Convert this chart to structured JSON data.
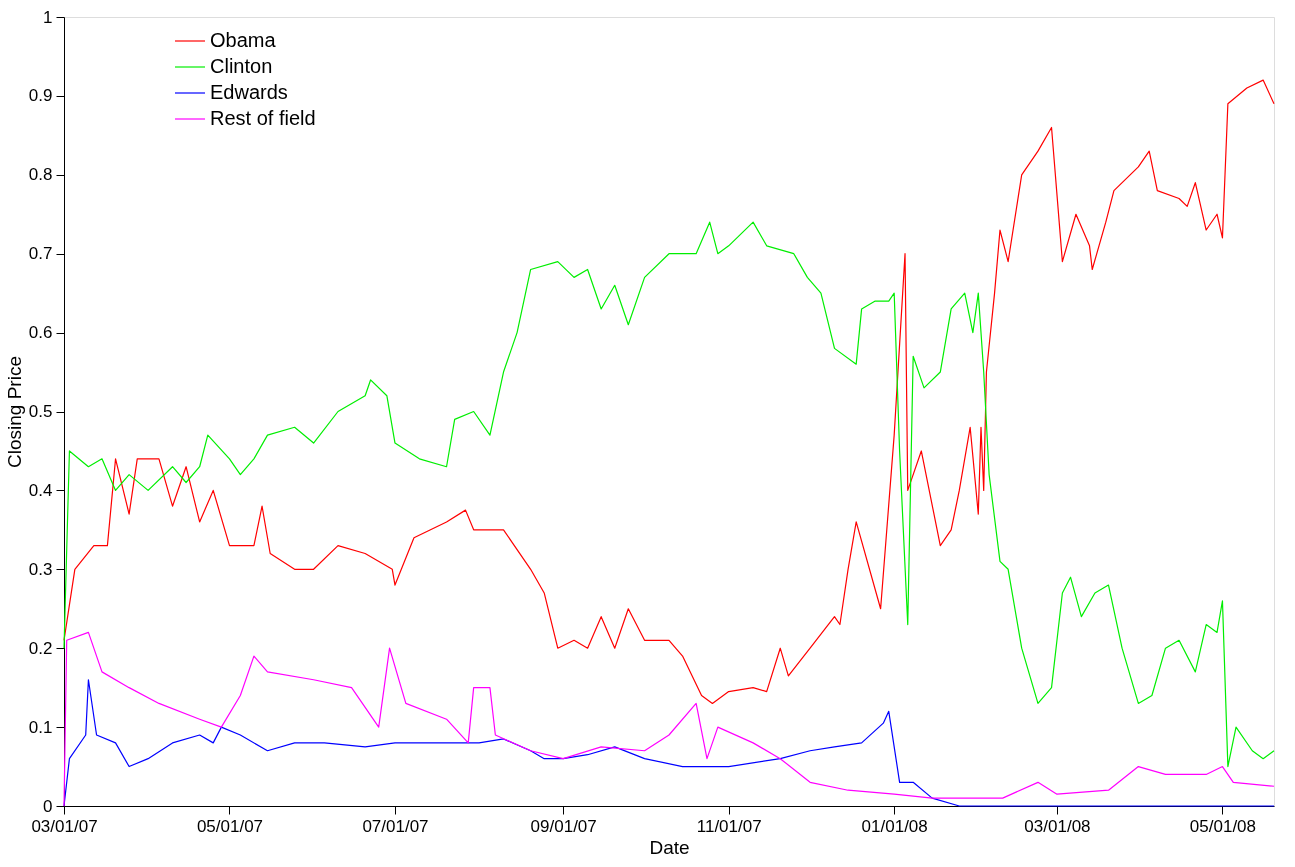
{
  "chart_data": {
    "type": "line",
    "xlabel": "Date",
    "ylabel": "Closing Price",
    "xlim": [
      "2007-03-01",
      "2008-05-20"
    ],
    "ylim": [
      0,
      1
    ],
    "xticks": [
      {
        "value": "2007-03-01",
        "label": "03/01/07"
      },
      {
        "value": "2007-05-01",
        "label": "05/01/07"
      },
      {
        "value": "2007-07-01",
        "label": "07/01/07"
      },
      {
        "value": "2007-09-01",
        "label": "09/01/07"
      },
      {
        "value": "2007-11-01",
        "label": "11/01/07"
      },
      {
        "value": "2008-01-01",
        "label": "01/01/08"
      },
      {
        "value": "2008-03-01",
        "label": "03/01/08"
      },
      {
        "value": "2008-05-01",
        "label": "05/01/08"
      }
    ],
    "yticks": [
      0,
      0.1,
      0.2,
      0.3,
      0.4,
      0.5,
      0.6,
      0.7,
      0.8,
      0.9,
      1
    ],
    "grid": false,
    "legend": "top left",
    "line_style": "solid",
    "marker": "none",
    "series": [
      {
        "name": "Obama",
        "color": "#ff0000",
        "x": [
          "2007-03-01",
          "2007-03-05",
          "2007-03-12",
          "2007-03-17",
          "2007-03-20",
          "2007-03-25",
          "2007-03-28",
          "2007-04-05",
          "2007-04-10",
          "2007-04-15",
          "2007-04-20",
          "2007-04-25",
          "2007-05-01",
          "2007-05-10",
          "2007-05-13",
          "2007-05-16",
          "2007-05-25",
          "2007-06-01",
          "2007-06-10",
          "2007-06-20",
          "2007-06-30",
          "2007-07-01",
          "2007-07-08",
          "2007-07-20",
          "2007-07-27",
          "2007-07-30",
          "2007-08-10",
          "2007-08-20",
          "2007-08-25",
          "2007-08-30",
          "2007-09-05",
          "2007-09-10",
          "2007-09-15",
          "2007-09-20",
          "2007-09-25",
          "2007-10-01",
          "2007-10-10",
          "2007-10-15",
          "2007-10-22",
          "2007-10-26",
          "2007-11-01",
          "2007-11-10",
          "2007-11-15",
          "2007-11-20",
          "2007-11-23",
          "2007-12-01",
          "2007-12-10",
          "2007-12-12",
          "2007-12-15",
          "2007-12-18",
          "2007-12-27",
          "2008-01-01",
          "2008-01-05",
          "2008-01-06",
          "2008-01-11",
          "2008-01-18",
          "2008-01-22",
          "2008-01-25",
          "2008-01-29",
          "2008-02-01",
          "2008-02-02",
          "2008-02-03",
          "2008-02-04",
          "2008-02-07",
          "2008-02-09",
          "2008-02-12",
          "2008-02-17",
          "2008-02-23",
          "2008-02-28",
          "2008-03-03",
          "2008-03-08",
          "2008-03-13",
          "2008-03-14",
          "2008-03-19",
          "2008-03-22",
          "2008-03-31",
          "2008-04-04",
          "2008-04-07",
          "2008-04-15",
          "2008-04-18",
          "2008-04-21",
          "2008-04-25",
          "2008-04-29",
          "2008-05-01",
          "2008-05-03",
          "2008-05-10",
          "2008-05-16",
          "2008-05-20"
        ],
        "values": [
          0.21,
          0.3,
          0.33,
          0.33,
          0.44,
          0.37,
          0.44,
          0.44,
          0.38,
          0.43,
          0.36,
          0.4,
          0.33,
          0.33,
          0.38,
          0.32,
          0.3,
          0.3,
          0.33,
          0.32,
          0.3,
          0.28,
          0.34,
          0.36,
          0.375,
          0.35,
          0.35,
          0.3,
          0.27,
          0.2,
          0.21,
          0.2,
          0.24,
          0.2,
          0.25,
          0.21,
          0.21,
          0.19,
          0.14,
          0.13,
          0.145,
          0.15,
          0.145,
          0.2,
          0.165,
          0.2,
          0.24,
          0.23,
          0.3,
          0.36,
          0.25,
          0.47,
          0.7,
          0.4,
          0.45,
          0.33,
          0.35,
          0.4,
          0.48,
          0.37,
          0.48,
          0.4,
          0.55,
          0.65,
          0.73,
          0.69,
          0.8,
          0.83,
          0.86,
          0.69,
          0.75,
          0.71,
          0.68,
          0.74,
          0.78,
          0.81,
          0.83,
          0.78,
          0.77,
          0.76,
          0.79,
          0.73,
          0.75,
          0.72,
          0.89,
          0.91,
          0.92,
          0.89
        ]
      },
      {
        "name": "Clinton",
        "color": "#00ee00",
        "x": [
          "2007-03-01",
          "2007-03-03",
          "2007-03-10",
          "2007-03-15",
          "2007-03-20",
          "2007-03-25",
          "2007-04-01",
          "2007-04-10",
          "2007-04-15",
          "2007-04-20",
          "2007-04-23",
          "2007-05-01",
          "2007-05-05",
          "2007-05-10",
          "2007-05-15",
          "2007-05-25",
          "2007-06-01",
          "2007-06-10",
          "2007-06-20",
          "2007-06-22",
          "2007-06-28",
          "2007-07-01",
          "2007-07-10",
          "2007-07-20",
          "2007-07-23",
          "2007-07-30",
          "2007-08-05",
          "2007-08-10",
          "2007-08-15",
          "2007-08-20",
          "2007-08-30",
          "2007-09-05",
          "2007-09-10",
          "2007-09-15",
          "2007-09-20",
          "2007-09-25",
          "2007-10-01",
          "2007-10-10",
          "2007-10-20",
          "2007-10-25",
          "2007-10-28",
          "2007-11-01",
          "2007-11-10",
          "2007-11-15",
          "2007-11-25",
          "2007-11-30",
          "2007-12-05",
          "2007-12-10",
          "2007-12-18",
          "2007-12-20",
          "2007-12-25",
          "2007-12-30",
          "2008-01-01",
          "2008-01-03",
          "2008-01-06",
          "2008-01-08",
          "2008-01-12",
          "2008-01-18",
          "2008-01-22",
          "2008-01-27",
          "2008-01-30",
          "2008-02-01",
          "2008-02-03",
          "2008-02-05",
          "2008-02-09",
          "2008-02-12",
          "2008-02-17",
          "2008-02-23",
          "2008-02-28",
          "2008-03-03",
          "2008-03-06",
          "2008-03-10",
          "2008-03-15",
          "2008-03-20",
          "2008-03-25",
          "2008-03-31",
          "2008-04-05",
          "2008-04-10",
          "2008-04-15",
          "2008-04-21",
          "2008-04-25",
          "2008-04-29",
          "2008-05-01",
          "2008-05-03",
          "2008-05-06",
          "2008-05-12",
          "2008-05-16",
          "2008-05-20"
        ],
        "values": [
          0.2,
          0.45,
          0.43,
          0.44,
          0.4,
          0.42,
          0.4,
          0.43,
          0.41,
          0.43,
          0.47,
          0.44,
          0.42,
          0.44,
          0.47,
          0.48,
          0.46,
          0.5,
          0.52,
          0.54,
          0.52,
          0.46,
          0.44,
          0.43,
          0.49,
          0.5,
          0.47,
          0.55,
          0.6,
          0.68,
          0.69,
          0.67,
          0.68,
          0.63,
          0.66,
          0.61,
          0.67,
          0.7,
          0.7,
          0.74,
          0.7,
          0.71,
          0.74,
          0.71,
          0.7,
          0.67,
          0.65,
          0.58,
          0.56,
          0.63,
          0.64,
          0.64,
          0.65,
          0.45,
          0.23,
          0.57,
          0.53,
          0.55,
          0.63,
          0.65,
          0.6,
          0.65,
          0.55,
          0.42,
          0.31,
          0.3,
          0.2,
          0.13,
          0.15,
          0.27,
          0.29,
          0.24,
          0.27,
          0.28,
          0.2,
          0.13,
          0.14,
          0.2,
          0.21,
          0.17,
          0.23,
          0.22,
          0.26,
          0.05,
          0.1,
          0.07,
          0.06,
          0.07
        ]
      },
      {
        "name": "Edwards",
        "color": "#0000ff",
        "x": [
          "2007-03-01",
          "2007-03-03",
          "2007-03-09",
          "2007-03-10",
          "2007-03-13",
          "2007-03-20",
          "2007-03-25",
          "2007-04-01",
          "2007-04-10",
          "2007-04-20",
          "2007-04-25",
          "2007-04-28",
          "2007-05-05",
          "2007-05-15",
          "2007-05-25",
          "2007-06-05",
          "2007-06-20",
          "2007-07-01",
          "2007-07-15",
          "2007-08-01",
          "2007-08-10",
          "2007-08-20",
          "2007-08-25",
          "2007-09-01",
          "2007-09-10",
          "2007-09-20",
          "2007-10-01",
          "2007-10-15",
          "2007-11-01",
          "2007-11-20",
          "2007-12-01",
          "2007-12-10",
          "2007-12-20",
          "2007-12-28",
          "2007-12-30",
          "2008-01-03",
          "2008-01-08",
          "2008-01-15",
          "2008-01-25",
          "2008-02-15",
          "2008-05-20"
        ],
        "values": [
          0.0,
          0.06,
          0.09,
          0.16,
          0.09,
          0.08,
          0.05,
          0.06,
          0.08,
          0.09,
          0.08,
          0.1,
          0.09,
          0.07,
          0.08,
          0.08,
          0.075,
          0.08,
          0.08,
          0.08,
          0.085,
          0.07,
          0.06,
          0.06,
          0.065,
          0.075,
          0.06,
          0.05,
          0.05,
          0.06,
          0.07,
          0.075,
          0.08,
          0.105,
          0.12,
          0.03,
          0.03,
          0.01,
          0.0,
          0.0,
          0.0
        ]
      },
      {
        "name": "Rest of field",
        "color": "#ff00ff",
        "x": [
          "2007-03-01",
          "2007-03-02",
          "2007-03-10",
          "2007-03-15",
          "2007-03-25",
          "2007-04-05",
          "2007-04-20",
          "2007-04-28",
          "2007-05-05",
          "2007-05-10",
          "2007-05-15",
          "2007-06-01",
          "2007-06-15",
          "2007-06-25",
          "2007-06-29",
          "2007-07-05",
          "2007-07-20",
          "2007-07-28",
          "2007-07-30",
          "2007-08-05",
          "2007-08-07",
          "2007-08-20",
          "2007-09-01",
          "2007-09-15",
          "2007-10-01",
          "2007-10-10",
          "2007-10-20",
          "2007-10-24",
          "2007-10-28",
          "2007-11-10",
          "2007-11-20",
          "2007-12-01",
          "2007-12-15",
          "2008-01-01",
          "2008-01-15",
          "2008-02-10",
          "2008-02-23",
          "2008-03-01",
          "2008-03-20",
          "2008-03-31",
          "2008-04-10",
          "2008-04-25",
          "2008-05-01",
          "2008-05-05",
          "2008-05-20"
        ],
        "values": [
          0.0,
          0.21,
          0.22,
          0.17,
          0.15,
          0.13,
          0.11,
          0.1,
          0.14,
          0.19,
          0.17,
          0.16,
          0.15,
          0.1,
          0.2,
          0.13,
          0.11,
          0.08,
          0.15,
          0.15,
          0.09,
          0.07,
          0.06,
          0.075,
          0.07,
          0.09,
          0.13,
          0.06,
          0.1,
          0.08,
          0.06,
          0.03,
          0.02,
          0.015,
          0.01,
          0.01,
          0.03,
          0.015,
          0.02,
          0.05,
          0.04,
          0.04,
          0.05,
          0.03,
          0.025
        ]
      }
    ]
  }
}
